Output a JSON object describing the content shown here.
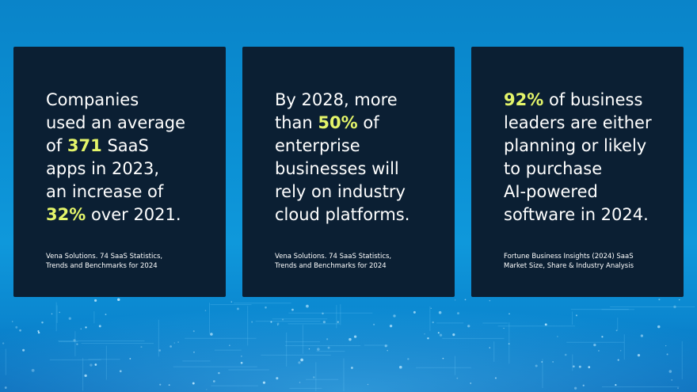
{
  "background": {
    "colors": {
      "sky_top": "#0a84c9",
      "sky_bottom": "#0768b8",
      "card": "#0b1f33",
      "highlight": "#e4f56a",
      "text": "#ffffff"
    }
  },
  "cards": [
    {
      "stat_lines": [
        [
          "Companies"
        ],
        [
          "used an average"
        ],
        [
          "of ",
          {
            "hl": "371"
          },
          " SaaS"
        ],
        [
          "apps in 2023,"
        ],
        [
          "an increase of"
        ],
        [
          {
            "hl": "32%"
          },
          " over 2021."
        ]
      ],
      "source_lines": [
        "Vena Solutions. 74 SaaS Statistics,",
        "Trends and Benchmarks for 2024"
      ]
    },
    {
      "stat_lines": [
        [
          "By 2028, more"
        ],
        [
          "than ",
          {
            "hl": "50%"
          },
          " of"
        ],
        [
          "enterprise"
        ],
        [
          "businesses will"
        ],
        [
          "rely on industry"
        ],
        [
          "cloud platforms."
        ]
      ],
      "source_lines": [
        "Vena Solutions. 74 SaaS Statistics,",
        "Trends and Benchmarks for 2024"
      ]
    },
    {
      "stat_lines": [
        [
          {
            "hl": "92%"
          },
          " of business"
        ],
        [
          "leaders are either"
        ],
        [
          "planning or likely"
        ],
        [
          "to purchase"
        ],
        [
          "AI-powered"
        ],
        [
          "software in 2024."
        ]
      ],
      "source_lines": [
        "Fortune Business Insights (2024) SaaS",
        "Market Size, Share & Industry Analysis"
      ]
    }
  ]
}
